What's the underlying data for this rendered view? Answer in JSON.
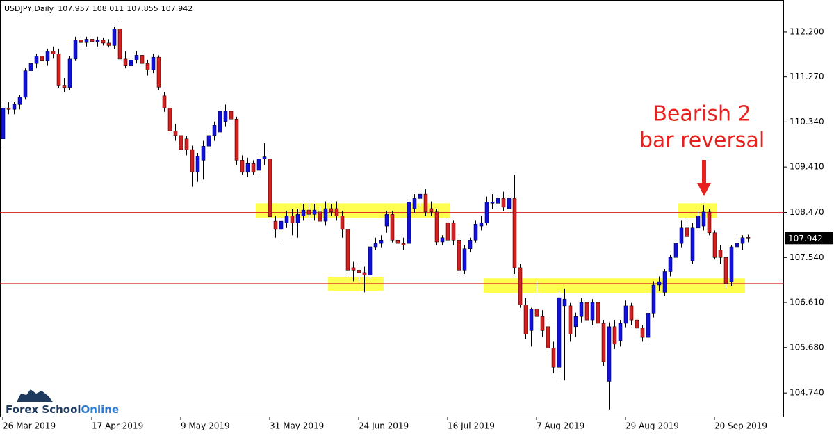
{
  "chart_data": {
    "type": "candlestick",
    "title": "USDJPY,Daily",
    "categories": [
      "26 Mar 2019",
      null,
      null,
      null,
      null,
      null,
      null,
      null,
      null,
      null,
      null,
      null,
      null,
      null,
      null,
      null,
      "17 Apr 2019",
      null,
      null,
      null,
      null,
      null,
      null,
      null,
      null,
      null,
      null,
      null,
      null,
      null,
      null,
      null,
      "9 May 2019",
      null,
      null,
      null,
      null,
      null,
      null,
      null,
      null,
      null,
      null,
      null,
      null,
      null,
      null,
      null,
      "31 May 2019",
      null,
      null,
      null,
      null,
      null,
      null,
      null,
      null,
      null,
      null,
      null,
      null,
      null,
      null,
      null,
      "24 Jun 2019",
      null,
      null,
      null,
      null,
      null,
      null,
      null,
      null,
      null,
      null,
      null,
      null,
      null,
      null,
      null,
      "16 Jul 2019",
      null,
      null,
      null,
      null,
      null,
      null,
      null,
      null,
      null,
      null,
      null,
      null,
      null,
      null,
      null,
      "7 Aug 2019",
      null,
      null,
      null,
      null,
      null,
      null,
      null,
      null,
      null,
      null,
      null,
      null,
      null,
      null,
      null,
      "29 Aug 2019",
      null,
      null,
      null,
      null,
      null,
      null,
      null,
      null,
      null,
      null,
      null,
      null,
      null,
      null,
      null,
      "20 Sep 2019",
      null,
      null,
      null,
      null,
      null,
      null
    ],
    "open": [
      109.99,
      110.63,
      110.6,
      110.7,
      110.85,
      111.4,
      111.55,
      111.7,
      111.6,
      111.8,
      111.75,
      111.1,
      111.05,
      111.64,
      112.03,
      111.98,
      112.05,
      112.0,
      112.03,
      111.97,
      111.92,
      112.26,
      111.64,
      111.5,
      111.62,
      111.72,
      111.55,
      111.42,
      111.68,
      110.88,
      110.63,
      110.15,
      110.06,
      109.99,
      109.77,
      109.3,
      109.55,
      109.84,
      110.06,
      110.13,
      110.35,
      110.56,
      110.4,
      109.55,
      109.3,
      109.48,
      109.34,
      109.58,
      109.58,
      108.29,
      108.12,
      108.26,
      108.4,
      108.26,
      108.4,
      108.52,
      108.43,
      108.48,
      108.29,
      108.55,
      108.55,
      108.4,
      108.12,
      107.33,
      107.28,
      107.23,
      107.18,
      107.76,
      107.83,
      108.19,
      108.43,
      107.9,
      107.83,
      107.83,
      108.55,
      108.76,
      108.85,
      108.55,
      108.48,
      107.86,
      108.26,
      108.26,
      107.9,
      107.28,
      107.72,
      107.9,
      108.19,
      108.26,
      108.66,
      108.66,
      108.76,
      108.55,
      108.76,
      107.33,
      106.56,
      106.03,
      106.47,
      106.32,
      106.11,
      105.67,
      105.27,
      106.54,
      106.54,
      106.11,
      106.32,
      106.61,
      106.25,
      106.61,
      106.18,
      104.98,
      106.11,
      105.82,
      106.18,
      106.54,
      106.25,
      106.08,
      105.89,
      106.39,
      106.97,
      106.82,
      107.25,
      107.54,
      107.83,
      108.15,
      107.47,
      108.15,
      108.19,
      108.48,
      108.05,
      107.69,
      107.54,
      107.04,
      107.76,
      107.83,
      107.957
    ],
    "high": [
      110.72,
      110.75,
      110.75,
      110.9,
      111.45,
      111.6,
      111.75,
      111.8,
      111.85,
      111.9,
      111.85,
      111.25,
      111.7,
      112.1,
      112.15,
      112.1,
      112.12,
      112.1,
      112.08,
      112.05,
      112.3,
      112.43,
      111.8,
      111.7,
      111.8,
      111.78,
      111.62,
      111.75,
      111.72,
      110.95,
      110.7,
      110.3,
      110.15,
      110.05,
      109.85,
      109.7,
      109.95,
      110.2,
      110.35,
      110.65,
      110.7,
      110.6,
      110.45,
      109.65,
      109.6,
      109.55,
      109.7,
      109.9,
      109.65,
      108.4,
      108.35,
      108.5,
      108.55,
      108.55,
      108.65,
      108.7,
      108.65,
      108.6,
      108.7,
      108.65,
      108.7,
      108.5,
      108.2,
      107.45,
      107.4,
      107.35,
      107.85,
      107.95,
      108.0,
      108.5,
      108.5,
      108.0,
      107.95,
      108.75,
      108.85,
      109.0,
      108.95,
      108.7,
      108.55,
      108.0,
      108.35,
      108.3,
      107.95,
      107.8,
      107.95,
      108.3,
      108.4,
      108.8,
      108.85,
      108.95,
      108.9,
      108.85,
      109.25,
      107.4,
      106.7,
      106.5,
      107.05,
      106.45,
      106.25,
      105.8,
      106.85,
      106.9,
      106.6,
      106.4,
      106.7,
      106.65,
      106.68,
      106.65,
      106.25,
      106.2,
      106.25,
      106.25,
      106.65,
      106.6,
      106.35,
      106.15,
      106.45,
      107.05,
      107.15,
      107.3,
      107.6,
      107.9,
      108.3,
      108.35,
      108.25,
      108.5,
      108.62,
      108.55,
      108.1,
      107.8,
      107.6,
      107.8,
      107.95,
      108.0,
      108.011
    ],
    "low": [
      109.85,
      110.5,
      110.5,
      110.6,
      110.8,
      111.3,
      111.45,
      111.55,
      111.5,
      111.65,
      111.05,
      110.95,
      111.0,
      111.6,
      111.9,
      111.9,
      111.95,
      111.9,
      111.92,
      111.88,
      111.85,
      111.6,
      111.45,
      111.4,
      111.55,
      111.5,
      111.3,
      111.35,
      111.0,
      110.55,
      110.1,
      109.95,
      109.7,
      109.65,
      109.0,
      109.1,
      109.15,
      109.7,
      109.95,
      110.05,
      110.25,
      110.3,
      109.45,
      109.25,
      109.2,
      109.25,
      109.25,
      109.45,
      108.3,
      107.95,
      107.9,
      108.15,
      108.0,
      107.95,
      108.3,
      108.35,
      108.3,
      108.15,
      108.2,
      108.4,
      108.3,
      107.95,
      107.2,
      107.05,
      107.05,
      106.82,
      107.1,
      107.7,
      107.75,
      108.05,
      107.85,
      107.75,
      107.7,
      107.8,
      108.45,
      108.6,
      108.4,
      108.4,
      107.8,
      107.8,
      107.85,
      107.8,
      107.2,
      107.2,
      107.65,
      107.85,
      108.1,
      108.2,
      108.55,
      108.6,
      108.5,
      108.45,
      107.2,
      106.5,
      105.85,
      105.7,
      106.2,
      105.9,
      105.55,
      105.15,
      105.0,
      105.0,
      105.8,
      105.9,
      106.2,
      106.2,
      106.15,
      106.1,
      105.3,
      104.4,
      105.65,
      105.7,
      106.1,
      106.15,
      106.0,
      105.8,
      105.8,
      106.3,
      106.85,
      106.75,
      107.15,
      107.45,
      107.75,
      107.95,
      107.4,
      108.05,
      108.1,
      108.0,
      107.5,
      107.4,
      106.9,
      106.95,
      107.65,
      107.7,
      107.855
    ],
    "close": [
      110.63,
      110.6,
      110.7,
      110.85,
      111.4,
      111.55,
      111.7,
      111.6,
      111.8,
      111.75,
      111.1,
      111.05,
      111.64,
      112.03,
      111.98,
      112.05,
      112.0,
      112.03,
      111.97,
      111.92,
      112.26,
      111.64,
      111.5,
      111.62,
      111.72,
      111.55,
      111.42,
      111.68,
      111.06,
      110.63,
      110.15,
      110.06,
      109.77,
      109.77,
      109.3,
      109.63,
      109.84,
      110.06,
      110.27,
      110.56,
      110.56,
      110.4,
      109.55,
      109.3,
      109.48,
      109.3,
      109.58,
      109.62,
      108.38,
      108.12,
      108.29,
      108.4,
      108.26,
      108.43,
      108.52,
      108.43,
      108.52,
      108.29,
      108.55,
      108.48,
      108.4,
      108.12,
      107.28,
      107.28,
      107.23,
      107.18,
      107.76,
      107.83,
      107.9,
      108.43,
      107.9,
      107.83,
      107.8,
      108.69,
      108.76,
      108.85,
      108.48,
      108.48,
      107.86,
      107.95,
      107.9,
      107.9,
      107.28,
      107.72,
      107.9,
      108.23,
      108.26,
      108.69,
      108.69,
      108.76,
      108.58,
      108.76,
      107.33,
      106.56,
      105.96,
      106.47,
      106.32,
      106.03,
      105.67,
      105.27,
      106.71,
      106.68,
      105.96,
      106.32,
      106.61,
      106.25,
      106.61,
      106.18,
      105.39,
      106.11,
      105.75,
      106.18,
      106.54,
      106.25,
      106.08,
      105.89,
      106.39,
      106.97,
      107.04,
      107.25,
      107.54,
      107.83,
      108.15,
      107.97,
      108.15,
      108.4,
      108.48,
      108.05,
      107.54,
      107.54,
      107.0,
      107.76,
      107.83,
      107.95,
      107.942
    ],
    "up_color": "#1010e0",
    "down_color": "#d42020",
    "wick_color": "#000000",
    "ylim": [
      104.24,
      112.86
    ],
    "yticks": [
      {
        "value": 112.2,
        "label": "112.200"
      },
      {
        "value": 111.27,
        "label": "111.270"
      },
      {
        "value": 110.34,
        "label": "110.340"
      },
      {
        "value": 109.41,
        "label": "109.410"
      },
      {
        "value": 108.47,
        "label": "108.470"
      },
      {
        "value": 107.54,
        "label": "107.540"
      },
      {
        "value": 106.61,
        "label": "106.610"
      },
      {
        "value": 105.68,
        "label": "105.680"
      },
      {
        "value": 104.74,
        "label": "104.740"
      }
    ],
    "grid": false,
    "levels": [
      108.47,
      107.0
    ],
    "level_color": "#d42020",
    "zones": [
      {
        "start": 46,
        "end": 80,
        "top": 108.66,
        "bottom": 108.36
      },
      {
        "start": 59,
        "end": 68,
        "top": 107.14,
        "bottom": 106.85
      },
      {
        "start": 87,
        "end": 133,
        "top": 107.11,
        "bottom": 106.81
      },
      {
        "start": 122,
        "end": 128,
        "top": 108.66,
        "bottom": 108.36
      }
    ],
    "zone_color": "#ffff30",
    "annotation": [
      "Bearish 2",
      "bar reversal"
    ],
    "brand": [
      "Forex School",
      "Online"
    ]
  }
}
